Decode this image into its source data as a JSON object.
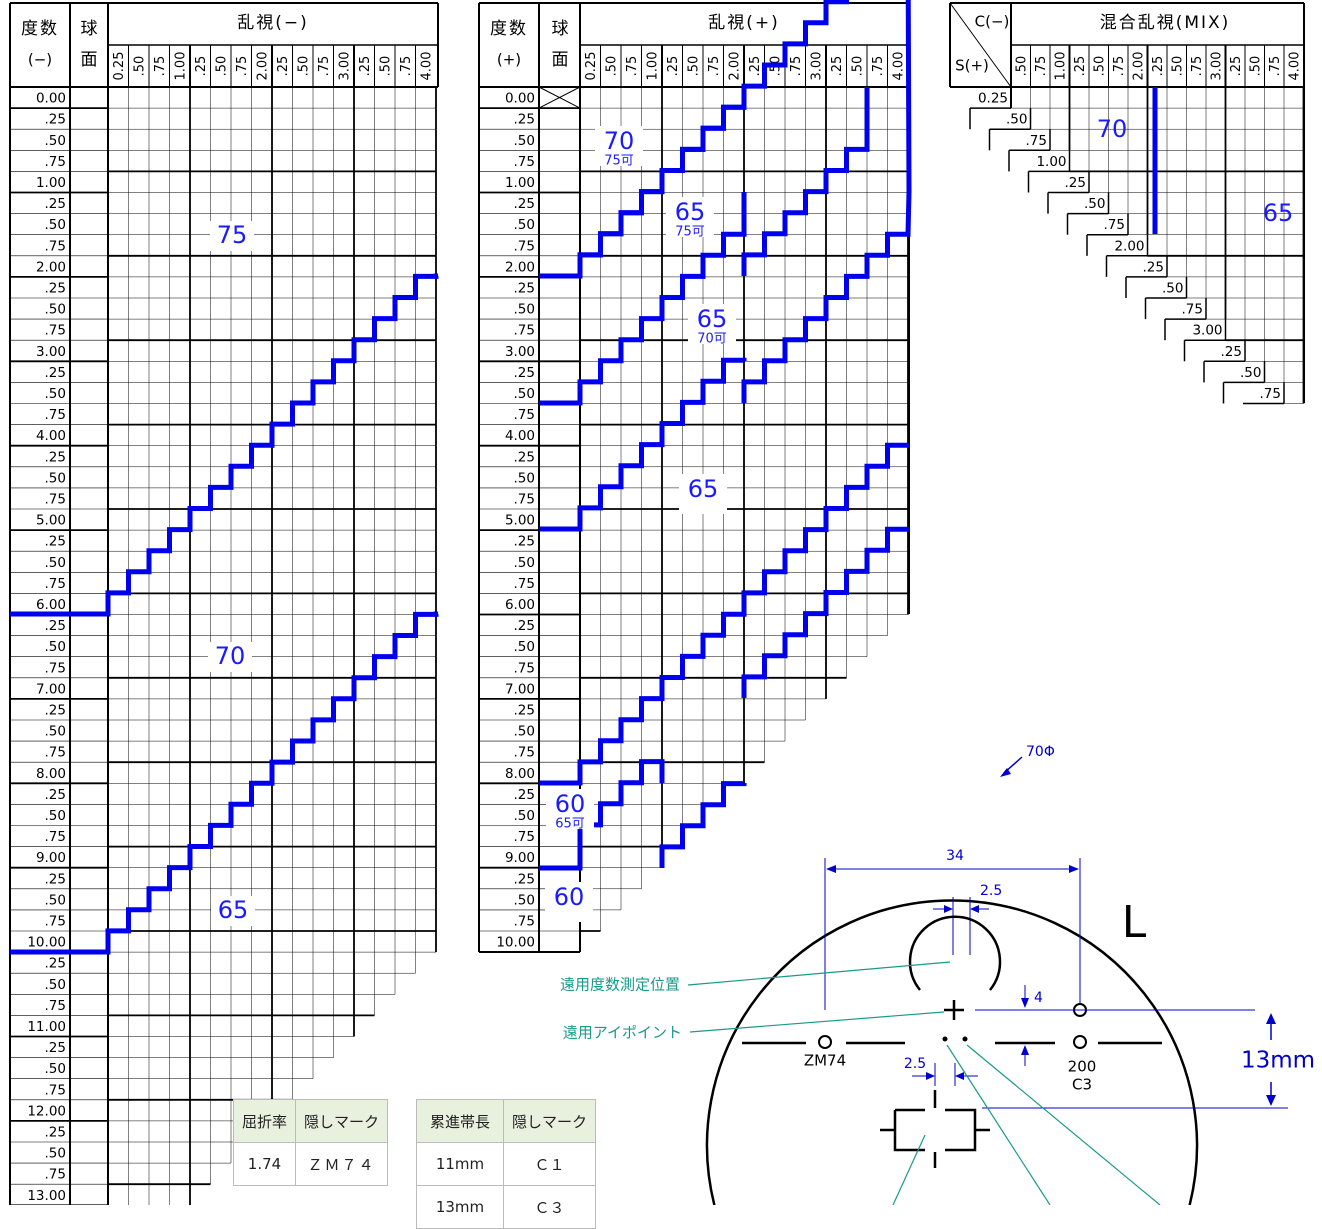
{
  "left_table": {
    "header_degree": "度数",
    "header_sign": "(−)",
    "header_sphere_1": "球",
    "header_sphere_2": "面",
    "header_title": "乱視(−)",
    "cyl_labels": [
      "0.25",
      ".50",
      ".75",
      "1.00",
      ".25",
      ".50",
      ".75",
      "2.00",
      ".25",
      ".50",
      ".75",
      "3.00",
      ".25",
      ".50",
      ".75",
      "4.00"
    ],
    "sphere_labels": [
      "0.00",
      ".25",
      ".50",
      ".75",
      "1.00",
      ".25",
      ".50",
      ".75",
      "2.00",
      ".25",
      ".50",
      ".75",
      "3.00",
      ".25",
      ".50",
      ".75",
      "4.00",
      ".25",
      ".50",
      ".75",
      "5.00",
      ".25",
      ".50",
      ".75",
      "6.00",
      ".25",
      ".50",
      ".75",
      "7.00",
      ".25",
      ".50",
      ".75",
      "8.00",
      ".25",
      ".50",
      ".75",
      "9.00",
      ".25",
      ".50",
      ".75",
      "10.00",
      ".25",
      ".50",
      ".75",
      "11.00",
      ".25",
      ".50",
      ".75",
      "12.00",
      ".25",
      ".50",
      ".75",
      "13.00"
    ],
    "zones": [
      {
        "label": "75"
      },
      {
        "label": "70"
      },
      {
        "label": "65"
      }
    ]
  },
  "middle_table": {
    "header_degree": "度数",
    "header_sign": "(+)",
    "header_sphere_1": "球",
    "header_sphere_2": "面",
    "header_title": "乱視(+)",
    "cyl_labels": [
      "0.25",
      ".50",
      ".75",
      "1.00",
      ".25",
      ".50",
      ".75",
      "2.00",
      ".25",
      ".50",
      ".75",
      "3.00",
      ".25",
      ".50",
      ".75",
      "4.00"
    ],
    "sphere_labels": [
      "0.00",
      ".25",
      ".50",
      ".75",
      "1.00",
      ".25",
      ".50",
      ".75",
      "2.00",
      ".25",
      ".50",
      ".75",
      "3.00",
      ".25",
      ".50",
      ".75",
      "4.00",
      ".25",
      ".50",
      ".75",
      "5.00",
      ".25",
      ".50",
      ".75",
      "6.00",
      ".25",
      ".50",
      ".75",
      "7.00",
      ".25",
      ".50",
      ".75",
      "8.00",
      ".25",
      ".50",
      ".75",
      "9.00",
      ".25",
      ".50",
      ".75",
      "10.00"
    ],
    "zones": [
      {
        "label": "70",
        "sub": "75可"
      },
      {
        "label": "65",
        "sub": "75可"
      },
      {
        "label": "65",
        "sub": "70可"
      },
      {
        "label": "65",
        "sub": ""
      },
      {
        "label": "60",
        "sub": "65可"
      },
      {
        "label": "60",
        "sub": ""
      }
    ]
  },
  "mix_table": {
    "header_c": "C(−)",
    "header_s": "S(+)",
    "header_title": "混合乱視(MIX)",
    "col_labels": [
      ".50",
      ".75",
      "1.00",
      ".25",
      ".50",
      ".75",
      "2.00",
      ".25",
      ".50",
      ".75",
      "3.00",
      ".25",
      ".50",
      ".75",
      "4.00"
    ],
    "diag_labels": [
      "0.25",
      ".50",
      ".75",
      "1.00",
      ".25",
      ".50",
      ".75",
      "2.00",
      ".25",
      ".50",
      ".75",
      "3.00",
      ".25",
      ".50",
      ".75"
    ],
    "zones": [
      {
        "label": "70"
      },
      {
        "label": "65"
      }
    ]
  },
  "table_refraction": {
    "headers": [
      "屈折率",
      "隠しマーク"
    ],
    "rows": [
      [
        "1.74",
        "ＺＭ７４"
      ]
    ]
  },
  "table_corridor": {
    "headers": [
      "累進帯長",
      "隠しマーク"
    ],
    "rows": [
      [
        "11mm",
        "Ｃ１"
      ],
      [
        "13mm",
        "Ｃ３"
      ]
    ]
  },
  "lens": {
    "diameter_label": "70Φ",
    "side_label": "L",
    "dim_34": "34",
    "dim_25_top": "2.5",
    "dim_25_bottom": "2.5",
    "dim_4": "4",
    "dim_13mm": "13mm",
    "mark_left": "ZM74",
    "mark_right_1": "200",
    "mark_right_2": "C3",
    "callout_far_measure": "遠用度数測定位置",
    "callout_far_eyepoint": "遠用アイポイント"
  },
  "colors": {
    "accent_line": "#0000ee",
    "zone_text": "#1a1aff",
    "callout": "#1a9a8a",
    "dimension": "#0000cc"
  }
}
